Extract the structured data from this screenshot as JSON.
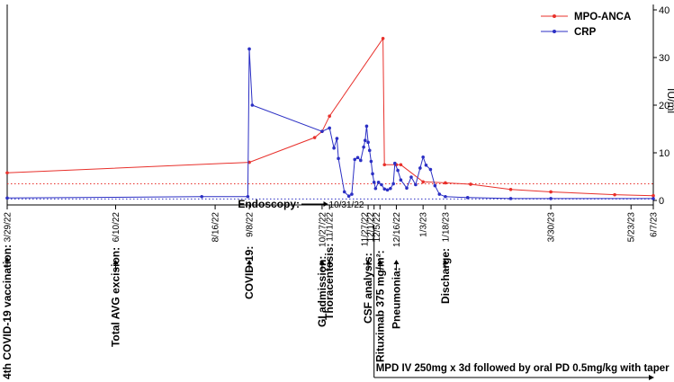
{
  "chart_data": {
    "type": "line",
    "title": "",
    "xlabel": "",
    "ylabel": "",
    "y_right_label": "IU/ml",
    "ylim": [
      0,
      40
    ],
    "y_ticks": [
      0,
      10,
      20,
      30,
      40
    ],
    "xlim": [
      "2022-03-29",
      "2023-06-07"
    ],
    "x_tick_labels": [
      "3/29/22",
      "6/10/22",
      "8/16/22",
      "9/8/22",
      "10/27/22",
      "11/1/22",
      "11/27/22",
      "12/1/22",
      "12/5/22",
      "12/16/22",
      "1/3/23",
      "1/18/23",
      "3/30/23",
      "5/23/23",
      "6/7/23"
    ],
    "x_tick_dates": [
      "2022-03-29",
      "2022-06-10",
      "2022-08-16",
      "2022-09-08",
      "2022-10-27",
      "2022-11-01",
      "2022-11-27",
      "2022-12-01",
      "2022-12-05",
      "2022-12-16",
      "2023-01-03",
      "2023-01-18",
      "2023-03-30",
      "2023-05-23",
      "2023-06-07"
    ],
    "legend_position": "top-right",
    "grid": false,
    "colors": {
      "mpo": "#e8302b",
      "crp": "#2b2fc4"
    },
    "series": [
      {
        "name": "MPO-ANCA",
        "points": [
          {
            "x": "2022-03-29",
            "y": 5.8
          },
          {
            "x": "2022-09-08",
            "y": 8.0
          },
          {
            "x": "2022-10-22",
            "y": 13.2
          },
          {
            "x": "2022-10-27",
            "y": 14.5
          },
          {
            "x": "2022-11-01",
            "y": 17.7
          },
          {
            "x": "2022-12-07",
            "y": 34.0
          },
          {
            "x": "2022-12-08",
            "y": 7.5
          },
          {
            "x": "2022-12-16",
            "y": 7.5
          },
          {
            "x": "2022-12-19",
            "y": 7.5
          },
          {
            "x": "2023-01-03",
            "y": 3.9
          },
          {
            "x": "2023-01-18",
            "y": 3.7
          },
          {
            "x": "2023-02-04",
            "y": 3.4
          },
          {
            "x": "2023-03-03",
            "y": 2.3
          },
          {
            "x": "2023-03-30",
            "y": 1.8
          },
          {
            "x": "2023-05-12",
            "y": 1.2
          },
          {
            "x": "2023-06-07",
            "y": 1.0
          }
        ]
      },
      {
        "name": "CRP",
        "points": [
          {
            "x": "2022-03-29",
            "y": 0.5
          },
          {
            "x": "2022-08-07",
            "y": 0.8
          },
          {
            "x": "2022-09-07",
            "y": 0.8
          },
          {
            "x": "2022-09-08",
            "y": 31.8
          },
          {
            "x": "2022-09-10",
            "y": 20.0
          },
          {
            "x": "2022-10-27",
            "y": 14.5
          },
          {
            "x": "2022-11-01",
            "y": 15.2
          },
          {
            "x": "2022-11-04",
            "y": 11.0
          },
          {
            "x": "2022-11-06",
            "y": 13.0
          },
          {
            "x": "2022-11-07",
            "y": 8.8
          },
          {
            "x": "2022-11-11",
            "y": 1.8
          },
          {
            "x": "2022-11-14",
            "y": 0.9
          },
          {
            "x": "2022-11-16",
            "y": 1.3
          },
          {
            "x": "2022-11-18",
            "y": 8.6
          },
          {
            "x": "2022-11-20",
            "y": 9.0
          },
          {
            "x": "2022-11-22",
            "y": 8.4
          },
          {
            "x": "2022-11-24",
            "y": 11.2
          },
          {
            "x": "2022-11-25",
            "y": 12.6
          },
          {
            "x": "2022-11-26",
            "y": 15.6
          },
          {
            "x": "2022-11-27",
            "y": 12.2
          },
          {
            "x": "2022-11-28",
            "y": 10.5
          },
          {
            "x": "2022-11-29",
            "y": 8.2
          },
          {
            "x": "2022-11-30",
            "y": 5.6
          },
          {
            "x": "2022-12-01",
            "y": 3.8
          },
          {
            "x": "2022-12-02",
            "y": 2.5
          },
          {
            "x": "2022-12-04",
            "y": 3.8
          },
          {
            "x": "2022-12-06",
            "y": 3.3
          },
          {
            "x": "2022-12-08",
            "y": 2.4
          },
          {
            "x": "2022-12-10",
            "y": 2.2
          },
          {
            "x": "2022-12-12",
            "y": 2.5
          },
          {
            "x": "2022-12-14",
            "y": 3.5
          },
          {
            "x": "2022-12-15",
            "y": 7.8
          },
          {
            "x": "2022-12-17",
            "y": 6.3
          },
          {
            "x": "2022-12-19",
            "y": 4.3
          },
          {
            "x": "2022-12-23",
            "y": 2.6
          },
          {
            "x": "2022-12-26",
            "y": 4.9
          },
          {
            "x": "2022-12-29",
            "y": 3.3
          },
          {
            "x": "2023-01-01",
            "y": 6.8
          },
          {
            "x": "2023-01-03",
            "y": 9.1
          },
          {
            "x": "2023-01-05",
            "y": 7.4
          },
          {
            "x": "2023-01-08",
            "y": 6.5
          },
          {
            "x": "2023-01-11",
            "y": 3.1
          },
          {
            "x": "2023-01-14",
            "y": 1.3
          },
          {
            "x": "2023-01-18",
            "y": 0.8
          },
          {
            "x": "2023-02-02",
            "y": 0.6
          },
          {
            "x": "2023-03-03",
            "y": 0.4
          },
          {
            "x": "2023-03-30",
            "y": 0.4
          },
          {
            "x": "2023-06-07",
            "y": 0.4
          }
        ]
      }
    ],
    "reference_lines": [
      {
        "series": "MPO-ANCA",
        "y": 3.5,
        "style": "dotted"
      },
      {
        "series": "CRP",
        "y": 0.3,
        "style": "dotted"
      }
    ],
    "annotations": [
      {
        "date": "2022-03-29",
        "text": "4th COVID-19 vaccination:"
      },
      {
        "date": "2022-06-10",
        "text": "Total AVG excision:"
      },
      {
        "date": "2022-09-08",
        "text": "COVID-19:"
      },
      {
        "date": "2022-10-27",
        "text": "GI admission:"
      },
      {
        "date": "2022-11-01",
        "text": "Thoracentesis:"
      },
      {
        "date": "2022-11-27",
        "text": "CSF analysis:"
      },
      {
        "date": "2022-12-05",
        "text": "Rituximab 375 mg/m²:"
      },
      {
        "date": "2022-12-16",
        "text": "Pneumonia:"
      },
      {
        "date": "2023-01-18",
        "text": "Discharge:"
      }
    ],
    "endoscopy": {
      "label": "Endoscopy:",
      "date_label": "10/31/22",
      "date": "2022-10-31"
    },
    "treatment": {
      "text": "MPD IV 250mg x 3d followed by oral PD 0.5mg/kg with taper",
      "start": "2022-12-01",
      "end": "2023-06-07"
    }
  }
}
